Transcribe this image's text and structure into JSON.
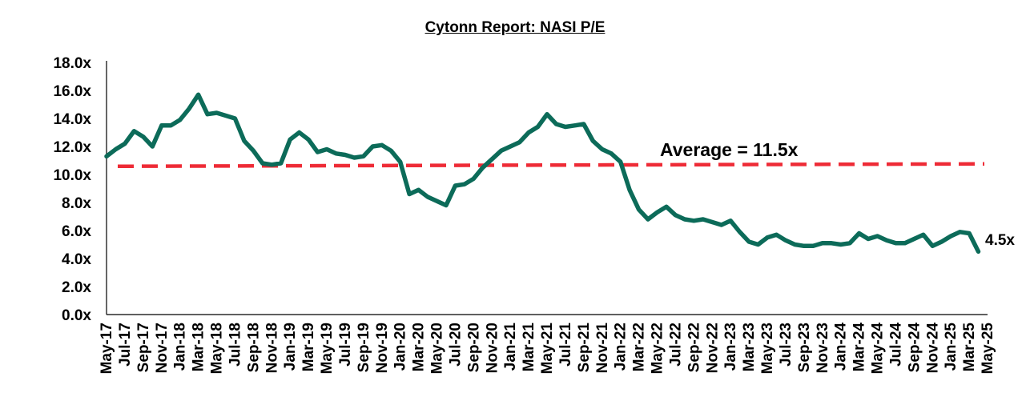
{
  "chart_data": {
    "type": "line",
    "title": "Cytonn Report: NASI P/E",
    "xlabel": "",
    "ylabel": "",
    "ylim": [
      0,
      18
    ],
    "y_ticks": [
      "0.0x",
      "2.0x",
      "4.0x",
      "6.0x",
      "8.0x",
      "10.0x",
      "12.0x",
      "14.0x",
      "16.0x",
      "18.0x"
    ],
    "x_ticks": [
      "May-17",
      "Jul-17",
      "Sep-17",
      "Nov-17",
      "Jan-18",
      "Mar-18",
      "May-18",
      "Jul-18",
      "Sep-18",
      "Nov-18",
      "Jan-19",
      "Mar-19",
      "May-19",
      "Jul-19",
      "Sep-19",
      "Nov-19",
      "Jan-20",
      "Mar-20",
      "May-20",
      "Jul-20",
      "Sep-20",
      "Nov-20",
      "Jan-21",
      "Mar-21",
      "May-21",
      "Jul-21",
      "Sep-21",
      "Nov-21",
      "Jan-22",
      "Mar-22",
      "May-22",
      "Jul-22",
      "Sep-22",
      "Nov-22",
      "Jan-23",
      "Mar-23",
      "May-23",
      "Jul-23",
      "Sep-23",
      "Nov-23",
      "Jan-24",
      "Mar-24",
      "May-24",
      "Jul-24",
      "Sep-24",
      "Nov-24",
      "Jan-25",
      "Mar-25",
      "May-25"
    ],
    "grid": false,
    "legend": "none",
    "series": [
      {
        "color": "#0c6b59",
        "x": [
          "2017-05",
          "2017-06",
          "2017-07",
          "2017-08",
          "2017-09",
          "2017-10",
          "2017-11",
          "2017-12",
          "2018-01",
          "2018-02",
          "2018-03",
          "2018-04",
          "2018-05",
          "2018-06",
          "2018-07",
          "2018-08",
          "2018-09",
          "2018-10",
          "2018-11",
          "2018-12",
          "2019-01",
          "2019-02",
          "2019-03",
          "2019-04",
          "2019-05",
          "2019-06",
          "2019-07",
          "2019-08",
          "2019-09",
          "2019-10",
          "2019-11",
          "2019-12",
          "2020-01",
          "2020-02",
          "2020-03",
          "2020-04",
          "2020-05",
          "2020-06",
          "2020-07",
          "2020-08",
          "2020-09",
          "2020-10",
          "2020-11",
          "2020-12",
          "2021-01",
          "2021-02",
          "2021-03",
          "2021-04",
          "2021-05",
          "2021-06",
          "2021-07",
          "2021-08",
          "2021-09",
          "2021-10",
          "2021-11",
          "2021-12",
          "2022-01",
          "2022-02",
          "2022-03",
          "2022-04",
          "2022-05",
          "2022-06",
          "2022-07",
          "2022-08",
          "2022-09",
          "2022-10",
          "2022-11",
          "2022-12",
          "2023-01",
          "2023-02",
          "2023-03",
          "2023-04",
          "2023-05",
          "2023-06",
          "2023-07",
          "2023-08",
          "2023-09",
          "2023-10",
          "2023-11",
          "2023-12",
          "2024-01",
          "2024-02",
          "2024-03",
          "2024-04",
          "2024-05",
          "2024-06",
          "2024-07",
          "2024-08",
          "2024-09",
          "2024-10",
          "2024-11",
          "2024-12",
          "2025-01",
          "2025-02",
          "2025-03",
          "2025-04"
        ],
        "values": [
          11.3,
          11.8,
          12.2,
          13.1,
          12.7,
          12.0,
          13.5,
          13.5,
          13.9,
          14.7,
          15.7,
          14.3,
          14.4,
          14.2,
          14.0,
          12.4,
          11.7,
          10.8,
          10.7,
          10.8,
          12.5,
          13.0,
          12.5,
          11.6,
          11.8,
          11.5,
          11.4,
          11.2,
          11.3,
          12.0,
          12.1,
          11.7,
          10.9,
          8.6,
          8.9,
          8.4,
          8.1,
          7.8,
          9.2,
          9.3,
          9.7,
          10.5,
          11.1,
          11.7,
          12.0,
          12.3,
          13.0,
          13.4,
          14.3,
          13.6,
          13.4,
          13.5,
          13.6,
          12.4,
          11.8,
          11.5,
          10.9,
          8.9,
          7.5,
          6.8,
          7.3,
          7.7,
          7.1,
          6.8,
          6.7,
          6.8,
          6.6,
          6.4,
          6.7,
          5.9,
          5.2,
          5.0,
          5.5,
          5.7,
          5.3,
          5.0,
          4.9,
          4.9,
          5.1,
          5.1,
          5.0,
          5.1,
          5.8,
          5.4,
          5.6,
          5.3,
          5.1,
          5.1,
          5.4,
          5.7,
          4.9,
          5.2,
          5.6,
          5.9,
          5.8,
          4.5
        ]
      }
    ],
    "average": {
      "value": 11.5,
      "color": "#ee2b36"
    },
    "annotations": {
      "average_label": "Average = 11.5x",
      "last_value_label": "4.5x"
    }
  }
}
